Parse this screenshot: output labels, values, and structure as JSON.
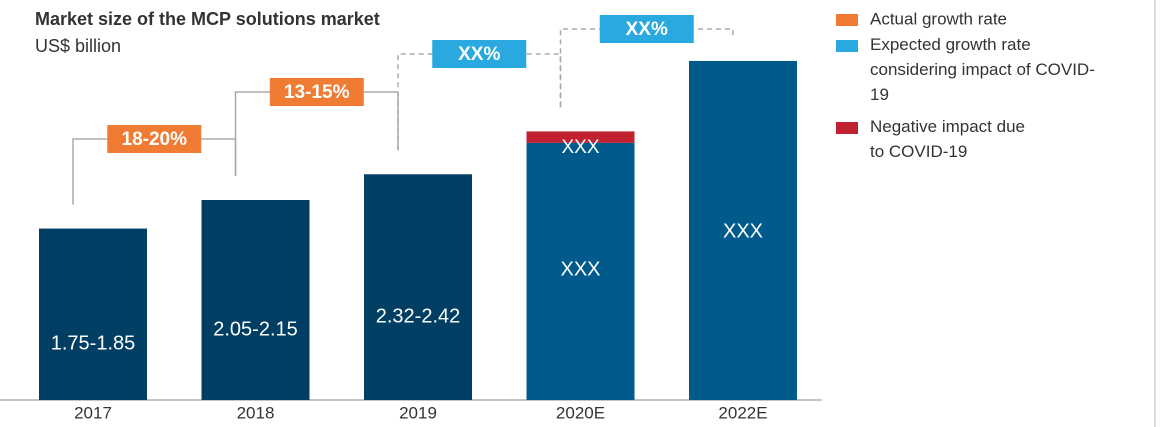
{
  "chart_data": {
    "type": "bar",
    "title": "Market size of the MCP solutions market",
    "subtitle": "US$ billion",
    "categories": [
      "2017",
      "2018",
      "2019",
      "2020E",
      "2022E"
    ],
    "values": [
      1.8,
      2.1,
      2.37,
      2.7,
      3.56
    ],
    "value_labels": [
      "1.75-1.85",
      "2.05-2.15",
      "2.32-2.42",
      "XXX",
      "XXX"
    ],
    "colors": [
      "#003f63",
      "#003f63",
      "#003f63",
      "#005a8c",
      "#005a8c"
    ],
    "impact": {
      "name": "Negative impact due to COVID-19",
      "color": "#c0202f",
      "values": [
        null,
        null,
        null,
        0.12,
        null
      ],
      "value_labels": [
        null,
        null,
        null,
        "XXX",
        null
      ]
    },
    "ylim": [
      0,
      4.2
    ],
    "growth": [
      {
        "text": "18-20%",
        "color": "#f07c33",
        "line": "solid"
      },
      {
        "text": "13-15%",
        "color": "#f07c33",
        "line": "solid"
      },
      {
        "text": "XX%",
        "color": "#29a9e0",
        "line": "dashed"
      },
      {
        "text": "XX%",
        "color": "#29a9e0",
        "line": "dashed"
      }
    ],
    "legend": [
      {
        "name": "Actual growth rate",
        "color": "#f07c33"
      },
      {
        "name": "Expected growth rate considering impact of COVID-19",
        "color": "#29a9e0"
      },
      {
        "name": "Negative impact due to COVID-19",
        "color": "#c0202f"
      }
    ]
  }
}
